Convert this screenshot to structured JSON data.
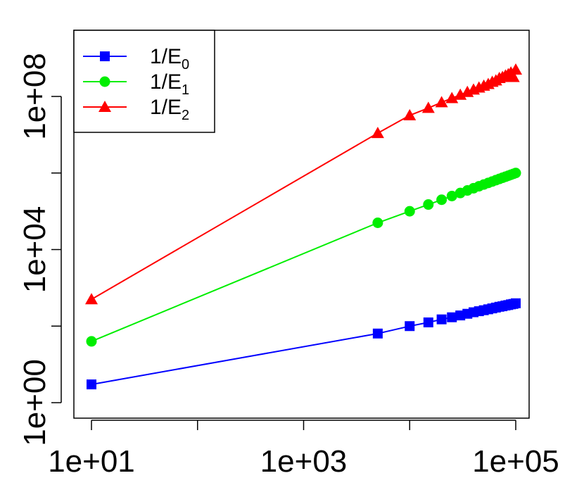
{
  "chart_data": {
    "type": "line",
    "x_scale": "log",
    "y_scale": "log",
    "xlim": [
      10,
      100000
    ],
    "ylim": [
      1,
      1000000000
    ],
    "x_ticks": [
      {
        "value": 10,
        "label": "1e+01"
      },
      {
        "value": 100,
        "label": ""
      },
      {
        "value": 1000,
        "label": "1e+03"
      },
      {
        "value": 10000,
        "label": ""
      },
      {
        "value": 100000,
        "label": "1e+05"
      }
    ],
    "y_ticks": [
      {
        "value": 1,
        "label": "1e+00"
      },
      {
        "value": 100,
        "label": ""
      },
      {
        "value": 10000,
        "label": "1e+04"
      },
      {
        "value": 1000000,
        "label": ""
      },
      {
        "value": 100000000,
        "label": "1e+08"
      }
    ],
    "grid": false,
    "legend_position": "top-left",
    "series": [
      {
        "name": "1/E",
        "sub": "0",
        "color": "#0000ff",
        "marker": "square",
        "x": [
          10,
          5000,
          10000,
          15000,
          20000,
          25000,
          30000,
          35000,
          40000,
          45000,
          50000,
          55000,
          60000,
          65000,
          70000,
          75000,
          80000,
          85000,
          90000,
          95000,
          100000
        ],
        "y": [
          3,
          64,
          100,
          125,
          150,
          170,
          190,
          210,
          230,
          245,
          260,
          275,
          290,
          305,
          320,
          330,
          345,
          355,
          370,
          380,
          395
        ]
      },
      {
        "name": "1/E",
        "sub": "1",
        "color": "#00ee00",
        "marker": "circle",
        "x": [
          10,
          5000,
          10000,
          15000,
          20000,
          25000,
          30000,
          35000,
          40000,
          45000,
          50000,
          55000,
          60000,
          65000,
          70000,
          75000,
          80000,
          85000,
          90000,
          95000,
          100000
        ],
        "y": [
          40,
          50000,
          100000,
          150000,
          200000,
          250000,
          300000,
          350000,
          400000,
          450000,
          500000,
          550000,
          600000,
          650000,
          700000,
          750000,
          800000,
          850000,
          900000,
          950000,
          1000000
        ]
      },
      {
        "name": "1/E",
        "sub": "2",
        "color": "#ff0000",
        "marker": "triangle",
        "x": [
          10,
          5000,
          10000,
          15000,
          20000,
          25000,
          30000,
          35000,
          40000,
          45000,
          50000,
          55000,
          60000,
          65000,
          70000,
          75000,
          80000,
          85000,
          90000,
          95000,
          100000
        ],
        "y": [
          500,
          11000000,
          32000000,
          50000000,
          70000000,
          90000000,
          110000000,
          130000000,
          150000000,
          170000000,
          190000000,
          210000000,
          240000000,
          260000000,
          300000000,
          320000000,
          350000000,
          380000000,
          420000000,
          320000000,
          500000000
        ]
      }
    ]
  }
}
